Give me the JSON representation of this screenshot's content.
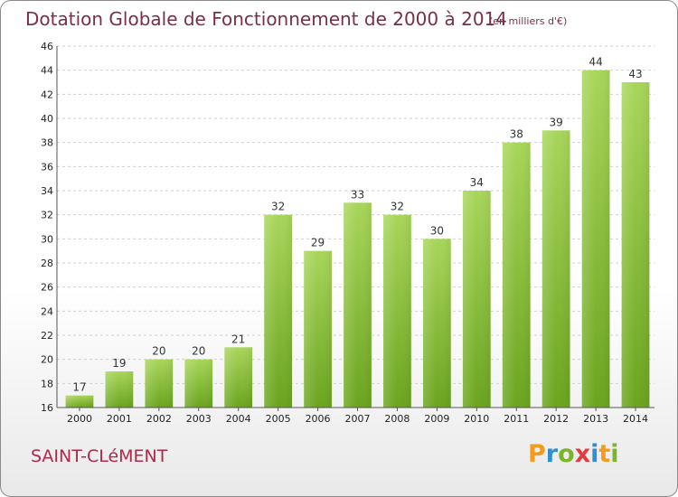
{
  "header": {
    "title": "Dotation Globale de Fonctionnement de 2000 à 2014",
    "unit": "(en milliers d'€)"
  },
  "commune": "SAINT-CLéMENT",
  "logo": {
    "letters": [
      "P",
      "r",
      "o",
      "x",
      "i",
      "t",
      "i"
    ],
    "colors": [
      "#f39c1b",
      "#2f8fd0",
      "#7bb52a",
      "#e23c3c",
      "#2f8fd0",
      "#f39c1b",
      "#7bb52a"
    ],
    "text": "Proxiti"
  },
  "colors": {
    "bar_light": "#a8d65a",
    "bar_dark": "#6aa41e",
    "grid": "#cfcfcf",
    "axis_text": "#222222"
  },
  "chart_data": {
    "type": "bar",
    "title": "Dotation Globale de Fonctionnement de 2000 à 2014",
    "subtitle": "(en milliers d'€)",
    "categories": [
      "2000",
      "2001",
      "2002",
      "2003",
      "2004",
      "2005",
      "2006",
      "2007",
      "2008",
      "2009",
      "2010",
      "2011",
      "2012",
      "2013",
      "2014"
    ],
    "values": [
      17,
      19,
      20,
      20,
      21,
      32,
      29,
      33,
      32,
      30,
      34,
      38,
      39,
      44,
      43
    ],
    "ylim": [
      16,
      46
    ],
    "yticks": [
      16,
      18,
      20,
      22,
      24,
      26,
      28,
      30,
      32,
      34,
      36,
      38,
      40,
      42,
      44,
      46
    ],
    "grid": true,
    "data_labels": true
  }
}
